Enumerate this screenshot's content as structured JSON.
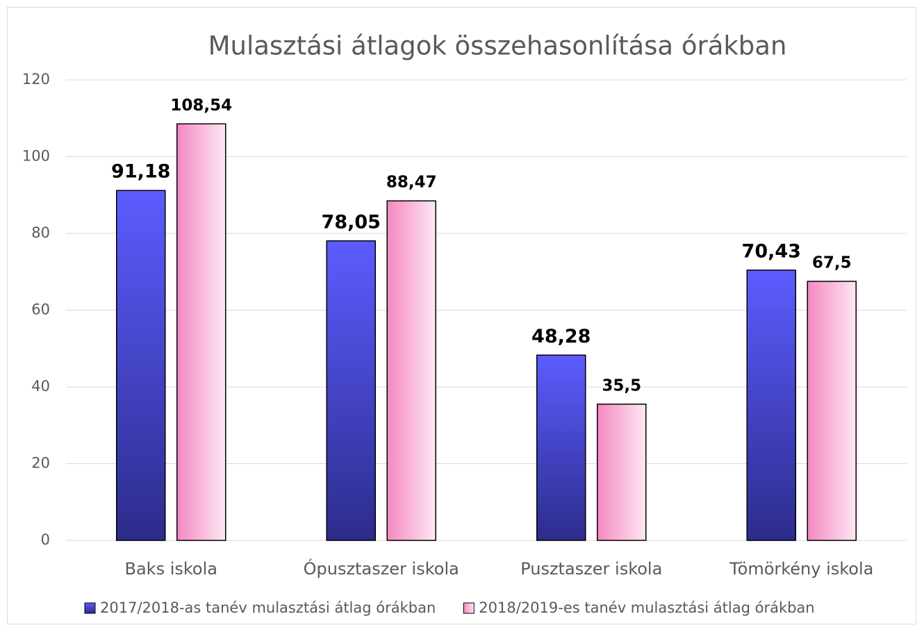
{
  "chart_data": {
    "type": "bar",
    "title": "Mulasztási átlagok összehasonlítása órákban",
    "categories": [
      "Baks iskola",
      "Ópusztaszer iskola",
      "Pusztaszer iskola",
      "Tömörkény iskola"
    ],
    "series": [
      {
        "name": "2017/2018-as tanév mulasztási átlag órákban",
        "color": "#5656f0",
        "values": [
          91.18,
          78.05,
          48.28,
          70.43
        ],
        "value_labels": [
          "91,18",
          "78,05",
          "48,28",
          "70,43"
        ]
      },
      {
        "name": "2018/2019-es tanév mulasztási átlag órákban",
        "color": "#f590c6",
        "values": [
          108.54,
          88.47,
          35.5,
          67.5
        ],
        "value_labels": [
          "108,54",
          "88,47",
          "35,5",
          "67,5"
        ]
      }
    ],
    "ylim": [
      0,
      120
    ],
    "yticks": [
      0,
      20,
      40,
      60,
      80,
      100,
      120
    ],
    "grid": true,
    "legend": "bottom"
  }
}
